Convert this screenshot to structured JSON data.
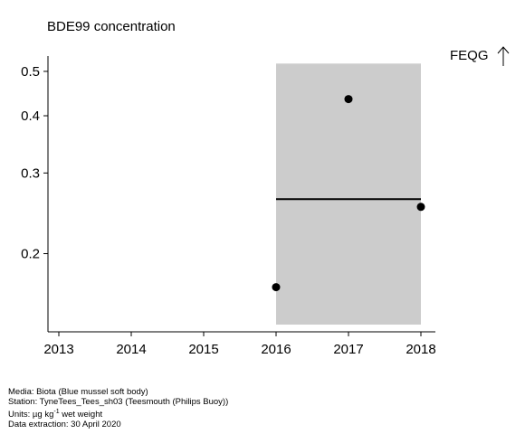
{
  "chart_data": {
    "type": "scatter",
    "title": "BDE99 concentration",
    "y_scale": "log",
    "xlim": [
      2012.85,
      2018.2
    ],
    "ylim": [
      0.135,
      0.54
    ],
    "x_ticks": [
      2013,
      2014,
      2015,
      2016,
      2017,
      2018
    ],
    "x_tick_labels": [
      "2013",
      "2014",
      "2015",
      "2016",
      "2017",
      "2018"
    ],
    "y_ticks": [
      0.2,
      0.3,
      0.4,
      0.5
    ],
    "y_tick_labels": [
      "0.2",
      "0.3",
      "0.4",
      "0.5"
    ],
    "points": [
      {
        "x": 2016,
        "y": 0.169
      },
      {
        "x": 2017,
        "y": 0.435
      },
      {
        "x": 2018,
        "y": 0.253
      }
    ],
    "band": {
      "x": [
        2016,
        2018
      ],
      "y": [
        0.14,
        0.52
      ],
      "color": "#cccccc"
    },
    "mean_line": {
      "x": [
        2016,
        2018
      ],
      "y": 0.263
    },
    "threshold_label": "FEQG",
    "threshold_arrow": "up-arrow-icon"
  },
  "footnote": {
    "media": "Media: Biota (Blue mussel soft body)",
    "station": "Station: TyneTees_Tees_sh03 (Teesmouth (Philips Buoy))",
    "units_prefix": "Units:  µg kg",
    "units_exp": "-1",
    "units_suffix": " wet weight",
    "extraction": "Data extraction: 30 April 2020"
  }
}
